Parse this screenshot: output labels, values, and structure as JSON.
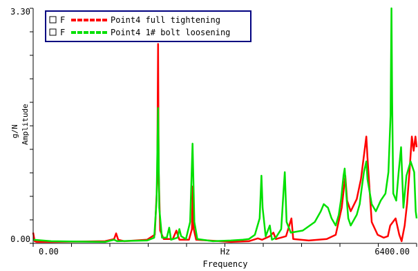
{
  "chart_data": {
    "type": "line",
    "title": "",
    "xlabel": "Frequency",
    "xunit": "Hz",
    "ylabel": "Amplitude",
    "yunit": "g/N",
    "xlim": [
      0,
      6400
    ],
    "ylim": [
      0,
      3.3
    ],
    "x_tick_labels": [
      "0.00",
      "6400.00"
    ],
    "y_tick_labels": [
      "0.00",
      "3.30"
    ],
    "grid": false,
    "legend_position": "top-left",
    "legend_marker": "F",
    "series": [
      {
        "name": "Point4 full tightening",
        "color": "#ff0000",
        "style": "dashed",
        "points": [
          [
            0,
            0.15
          ],
          [
            25,
            0.03
          ],
          [
            60,
            0.02
          ],
          [
            300,
            0.02
          ],
          [
            1200,
            0.03
          ],
          [
            1350,
            0.06
          ],
          [
            1385,
            0.14
          ],
          [
            1420,
            0.05
          ],
          [
            1520,
            0.03
          ],
          [
            1900,
            0.05
          ],
          [
            2030,
            0.12
          ],
          [
            2070,
            0.85
          ],
          [
            2085,
            2.8
          ],
          [
            2095,
            1.0
          ],
          [
            2120,
            0.18
          ],
          [
            2180,
            0.06
          ],
          [
            2330,
            0.06
          ],
          [
            2390,
            0.18
          ],
          [
            2440,
            0.05
          ],
          [
            2600,
            0.05
          ],
          [
            2650,
            0.2
          ],
          [
            2665,
            0.8
          ],
          [
            2680,
            0.2
          ],
          [
            2720,
            0.05
          ],
          [
            3300,
            0.02
          ],
          [
            3600,
            0.03
          ],
          [
            3750,
            0.07
          ],
          [
            3820,
            0.05
          ],
          [
            3950,
            0.1
          ],
          [
            4010,
            0.15
          ],
          [
            4050,
            0.06
          ],
          [
            4220,
            0.1
          ],
          [
            4310,
            0.35
          ],
          [
            4340,
            0.06
          ],
          [
            4600,
            0.04
          ],
          [
            4900,
            0.06
          ],
          [
            5050,
            0.12
          ],
          [
            5150,
            0.5
          ],
          [
            5210,
            0.95
          ],
          [
            5240,
            0.6
          ],
          [
            5300,
            0.45
          ],
          [
            5400,
            0.62
          ],
          [
            5470,
            0.9
          ],
          [
            5530,
            1.3
          ],
          [
            5560,
            1.5
          ],
          [
            5580,
            1.2
          ],
          [
            5650,
            0.3
          ],
          [
            5750,
            0.12
          ],
          [
            5850,
            0.08
          ],
          [
            5920,
            0.1
          ],
          [
            5960,
            0.25
          ],
          [
            6050,
            0.35
          ],
          [
            6110,
            0.12
          ],
          [
            6150,
            0.03
          ],
          [
            6200,
            0.25
          ],
          [
            6240,
            0.55
          ],
          [
            6280,
            1.0
          ],
          [
            6320,
            1.5
          ],
          [
            6350,
            1.3
          ],
          [
            6380,
            1.5
          ],
          [
            6400,
            1.35
          ]
        ]
      },
      {
        "name": "Point4 1# bolt loosening",
        "color": "#00e000",
        "style": "dashed",
        "points": [
          [
            0,
            0.05
          ],
          [
            300,
            0.03
          ],
          [
            1200,
            0.02
          ],
          [
            1350,
            0.05
          ],
          [
            1400,
            0.03
          ],
          [
            1900,
            0.04
          ],
          [
            2020,
            0.08
          ],
          [
            2060,
            0.6
          ],
          [
            2085,
            1.9
          ],
          [
            2105,
            0.5
          ],
          [
            2150,
            0.08
          ],
          [
            2230,
            0.08
          ],
          [
            2270,
            0.22
          ],
          [
            2300,
            0.05
          ],
          [
            2410,
            0.08
          ],
          [
            2440,
            0.2
          ],
          [
            2470,
            0.1
          ],
          [
            2550,
            0.06
          ],
          [
            2620,
            0.3
          ],
          [
            2660,
            1.4
          ],
          [
            2690,
            0.3
          ],
          [
            2740,
            0.06
          ],
          [
            3000,
            0.03
          ],
          [
            3300,
            0.04
          ],
          [
            3500,
            0.05
          ],
          [
            3600,
            0.06
          ],
          [
            3700,
            0.12
          ],
          [
            3780,
            0.35
          ],
          [
            3810,
            0.95
          ],
          [
            3830,
            0.5
          ],
          [
            3880,
            0.1
          ],
          [
            3950,
            0.25
          ],
          [
            3985,
            0.05
          ],
          [
            4050,
            0.08
          ],
          [
            4140,
            0.2
          ],
          [
            4180,
            0.75
          ],
          [
            4200,
            1.0
          ],
          [
            4230,
            0.3
          ],
          [
            4300,
            0.15
          ],
          [
            4500,
            0.18
          ],
          [
            4700,
            0.3
          ],
          [
            4800,
            0.45
          ],
          [
            4850,
            0.55
          ],
          [
            4920,
            0.5
          ],
          [
            4980,
            0.35
          ],
          [
            5050,
            0.25
          ],
          [
            5100,
            0.4
          ],
          [
            5140,
            0.62
          ],
          [
            5180,
            0.95
          ],
          [
            5200,
            1.05
          ],
          [
            5230,
            0.65
          ],
          [
            5260,
            0.35
          ],
          [
            5300,
            0.25
          ],
          [
            5400,
            0.4
          ],
          [
            5450,
            0.55
          ],
          [
            5480,
            0.75
          ],
          [
            5520,
            1.0
          ],
          [
            5560,
            1.15
          ],
          [
            5580,
            0.9
          ],
          [
            5650,
            0.55
          ],
          [
            5720,
            0.45
          ],
          [
            5800,
            0.6
          ],
          [
            5880,
            0.7
          ],
          [
            5930,
            1.0
          ],
          [
            5965,
            1.8
          ],
          [
            5980,
            3.3
          ],
          [
            5992,
            2.0
          ],
          [
            6010,
            0.7
          ],
          [
            6060,
            0.6
          ],
          [
            6100,
            1.0
          ],
          [
            6140,
            1.35
          ],
          [
            6180,
            0.5
          ],
          [
            6230,
            0.95
          ],
          [
            6300,
            1.15
          ],
          [
            6360,
            1.0
          ],
          [
            6385,
            0.45
          ],
          [
            6400,
            0.35
          ]
        ]
      }
    ]
  }
}
